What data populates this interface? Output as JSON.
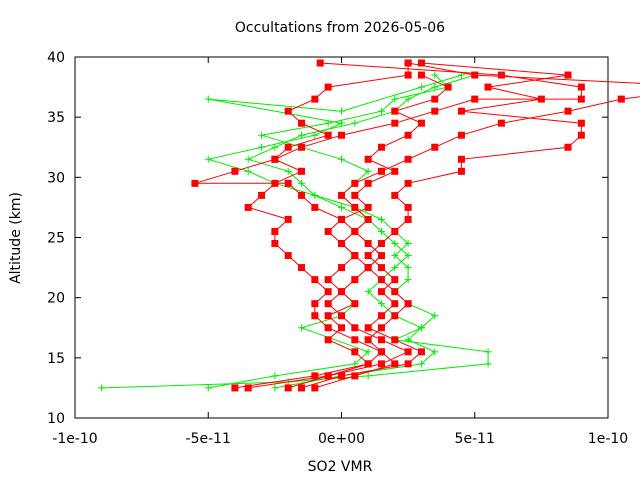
{
  "chart_data": {
    "type": "line",
    "title": "Occultations from 2026-05-06",
    "xlabel": "SO2 VMR",
    "ylabel": "Altitude (km)",
    "xlim": [
      -1e-10,
      1e-10
    ],
    "ylim": [
      10,
      40
    ],
    "x_ticks": [
      {
        "value": -1e-10,
        "label": "-1e-10"
      },
      {
        "value": -5e-11,
        "label": "-5e-11"
      },
      {
        "value": 0,
        "label": "0e+00"
      },
      {
        "value": 5e-11,
        "label": "5e-11"
      },
      {
        "value": 1e-10,
        "label": "1e-10"
      }
    ],
    "y_ticks": [
      {
        "value": 10,
        "label": "10"
      },
      {
        "value": 15,
        "label": "15"
      },
      {
        "value": 20,
        "label": "20"
      },
      {
        "value": 25,
        "label": "25"
      },
      {
        "value": 30,
        "label": "30"
      },
      {
        "value": 35,
        "label": "35"
      },
      {
        "value": 40,
        "label": "40"
      }
    ],
    "grid": false,
    "legend": "none",
    "series": [
      {
        "marker": "square",
        "color": "#ff0000",
        "points": [
          [
            -4e-11,
            12.5
          ],
          [
            -1e-11,
            13.5
          ],
          [
            1e-11,
            14.5
          ],
          [
            5e-12,
            15.5
          ],
          [
            -5e-12,
            16.5
          ],
          [
            0,
            17.5
          ],
          [
            -5e-12,
            18.5
          ],
          [
            5e-12,
            19.5
          ],
          [
            0,
            20.5
          ],
          [
            -5e-12,
            21.5
          ],
          [
            0,
            22.5
          ],
          [
            5e-12,
            23.5
          ],
          [
            0,
            24.5
          ],
          [
            -5e-12,
            25.5
          ],
          [
            0,
            26.5
          ],
          [
            -1e-11,
            27.5
          ],
          [
            -1.5e-11,
            28.5
          ],
          [
            -2e-11,
            29.5
          ],
          [
            -5.5e-11,
            29.5
          ],
          [
            -4e-11,
            30.5
          ],
          [
            -2.5e-11,
            31.5
          ],
          [
            -1.5e-11,
            32.5
          ],
          [
            0,
            33.5
          ],
          [
            2e-11,
            34.5
          ],
          [
            3.5e-11,
            35.5
          ],
          [
            5e-11,
            36.5
          ],
          [
            9e-11,
            36.5
          ],
          [
            9e-11,
            37.5
          ],
          [
            6e-11,
            38.5
          ],
          [
            -8e-12,
            39.5
          ]
        ]
      },
      {
        "marker": "square",
        "color": "#ff0000",
        "points": [
          [
            -3.5e-11,
            12.5
          ],
          [
            -5e-12,
            13.5
          ],
          [
            1.5e-11,
            14.5
          ],
          [
            2.5e-11,
            15.5
          ],
          [
            1.5e-11,
            16.5
          ],
          [
            5e-12,
            17.5
          ],
          [
            0,
            18.5
          ],
          [
            -5e-12,
            19.5
          ],
          [
            0,
            20.5
          ],
          [
            5e-12,
            21.5
          ],
          [
            1e-11,
            22.5
          ],
          [
            5e-12,
            23.5
          ],
          [
            0,
            24.5
          ],
          [
            5e-12,
            25.5
          ],
          [
            1e-11,
            26.5
          ],
          [
            5e-12,
            27.5
          ],
          [
            0,
            28.5
          ],
          [
            5e-12,
            29.5
          ],
          [
            1.5e-11,
            30.5
          ],
          [
            2.5e-11,
            31.5
          ],
          [
            3.5e-11,
            32.5
          ],
          [
            4.5e-11,
            33.5
          ],
          [
            6e-11,
            34.5
          ],
          [
            8.5e-11,
            35.5
          ],
          [
            1.05e-10,
            36.5
          ],
          [
            1.4e-10,
            37.5
          ],
          [
            5e-11,
            38.5
          ],
          [
            2.5e-11,
            39.5
          ]
        ]
      },
      {
        "marker": "square",
        "color": "#ff0000",
        "points": [
          [
            -1e-11,
            12.5
          ],
          [
            5e-12,
            13.5
          ],
          [
            2e-11,
            14.5
          ],
          [
            1.5e-11,
            15.5
          ],
          [
            5e-12,
            16.5
          ],
          [
            -5e-12,
            17.5
          ],
          [
            -1e-11,
            18.5
          ],
          [
            -1e-11,
            19.5
          ],
          [
            -5e-12,
            20.5
          ],
          [
            -1e-11,
            21.5
          ],
          [
            -1.5e-11,
            22.5
          ],
          [
            -2e-11,
            23.5
          ],
          [
            -2.5e-11,
            24.5
          ],
          [
            -2.5e-11,
            25.5
          ],
          [
            -2e-11,
            26.5
          ],
          [
            -3.5e-11,
            27.5
          ],
          [
            -3e-11,
            28.5
          ],
          [
            -2.5e-11,
            29.5
          ],
          [
            -1.5e-11,
            30.5
          ],
          [
            -2.5e-11,
            31.5
          ],
          [
            -2e-11,
            32.5
          ],
          [
            -5e-12,
            33.5
          ],
          [
            -1.5e-11,
            34.5
          ],
          [
            -2e-11,
            35.5
          ],
          [
            -1e-11,
            36.5
          ],
          [
            -5e-12,
            37.5
          ],
          [
            2.5e-11,
            38.5
          ],
          [
            2.5e-11,
            39.5
          ]
        ]
      },
      {
        "marker": "square",
        "color": "#ff0000",
        "points": [
          [
            -1.5e-11,
            12.5
          ],
          [
            0,
            13.5
          ],
          [
            2.5e-11,
            14.5
          ],
          [
            3e-11,
            15.5
          ],
          [
            2e-11,
            16.5
          ],
          [
            1e-11,
            17.5
          ],
          [
            1.5e-11,
            18.5
          ],
          [
            2e-11,
            19.5
          ],
          [
            1.5e-11,
            20.5
          ],
          [
            2e-11,
            21.5
          ],
          [
            1.5e-11,
            22.5
          ],
          [
            1e-11,
            23.5
          ],
          [
            1.5e-11,
            24.5
          ],
          [
            2e-11,
            25.5
          ],
          [
            2.5e-11,
            26.5
          ],
          [
            2.5e-11,
            27.5
          ],
          [
            2e-11,
            28.5
          ],
          [
            2.5e-11,
            29.5
          ],
          [
            4.5e-11,
            30.5
          ],
          [
            4.5e-11,
            31.5
          ],
          [
            8.5e-11,
            32.5
          ],
          [
            9e-11,
            33.5
          ],
          [
            9e-11,
            34.5
          ],
          [
            4.5e-11,
            35.5
          ],
          [
            7.5e-11,
            36.5
          ],
          [
            5.5e-11,
            37.5
          ],
          [
            8.5e-11,
            38.5
          ],
          [
            3e-11,
            39.5
          ]
        ]
      },
      {
        "marker": "square",
        "color": "#ff0000",
        "points": [
          [
            -2e-11,
            12.5
          ],
          [
            -5e-12,
            13.5
          ],
          [
            1e-11,
            14.5
          ],
          [
            1.5e-11,
            15.5
          ],
          [
            1e-11,
            16.5
          ],
          [
            1.5e-11,
            17.5
          ],
          [
            2e-11,
            18.5
          ],
          [
            2.5e-11,
            19.5
          ],
          [
            2e-11,
            20.5
          ],
          [
            1.5e-11,
            21.5
          ],
          [
            1e-11,
            22.5
          ],
          [
            1.5e-11,
            23.5
          ],
          [
            1e-11,
            24.5
          ],
          [
            5e-12,
            25.5
          ],
          [
            0,
            26.5
          ],
          [
            1e-11,
            27.5
          ],
          [
            5e-12,
            28.5
          ],
          [
            1e-11,
            29.5
          ],
          [
            2e-11,
            30.5
          ],
          [
            1e-11,
            31.5
          ],
          [
            1.5e-11,
            32.5
          ],
          [
            2.5e-11,
            33.5
          ],
          [
            3e-11,
            34.5
          ],
          [
            2e-11,
            35.5
          ],
          [
            3.5e-11,
            36.5
          ],
          [
            4e-11,
            37.5
          ],
          [
            3e-11,
            38.5
          ]
        ]
      },
      {
        "marker": "plus",
        "color": "#00ee00",
        "points": [
          [
            -9e-11,
            12.5
          ],
          [
            -2e-11,
            13
          ],
          [
            1e-11,
            13.5
          ],
          [
            5.5e-11,
            14.5
          ],
          [
            5.5e-11,
            15.5
          ],
          [
            2e-11,
            16.5
          ],
          [
            3e-11,
            17.5
          ],
          [
            3.5e-11,
            18.5
          ],
          [
            2.5e-11,
            19.5
          ],
          [
            2e-11,
            20.5
          ],
          [
            2.5e-11,
            21.5
          ],
          [
            2.5e-11,
            22.5
          ],
          [
            2e-11,
            23.5
          ],
          [
            2.5e-11,
            24.5
          ],
          [
            2e-11,
            25.5
          ],
          [
            1.5e-11,
            26.5
          ],
          [
            5e-12,
            27.5
          ],
          [
            -1e-11,
            28.5
          ],
          [
            -2.5e-11,
            29.5
          ],
          [
            -3.5e-11,
            30.5
          ],
          [
            -5e-11,
            31.5
          ],
          [
            -3e-11,
            32.5
          ],
          [
            -1e-11,
            33.5
          ],
          [
            0,
            34.5
          ],
          [
            -5e-11,
            36.5
          ],
          [
            0,
            35.5
          ],
          [
            3e-11,
            37.5
          ],
          [
            4.5e-11,
            38.5
          ]
        ]
      },
      {
        "marker": "plus",
        "color": "#00ee00",
        "points": [
          [
            -5e-11,
            12.5
          ],
          [
            -2.5e-11,
            13.5
          ],
          [
            5e-12,
            14.5
          ],
          [
            1e-11,
            15.5
          ],
          [
            -1.5e-11,
            17.5
          ],
          [
            0,
            18.5
          ],
          [
            5e-12,
            19.5
          ],
          [
            0,
            20.5
          ],
          [
            5e-12,
            21.5
          ],
          [
            1e-11,
            22.5
          ],
          [
            1.5e-11,
            23.5
          ],
          [
            1e-11,
            24.5
          ],
          [
            5e-12,
            25.5
          ],
          [
            1e-11,
            26.5
          ],
          [
            0,
            27.5
          ],
          [
            -1e-11,
            28.5
          ],
          [
            -1.5e-11,
            29.5
          ],
          [
            -2e-11,
            30.5
          ],
          [
            -3.5e-11,
            31.5
          ],
          [
            -2.5e-11,
            32.5
          ],
          [
            -1.5e-11,
            33.5
          ],
          [
            5e-12,
            34.5
          ],
          [
            2e-11,
            35.5
          ],
          [
            2.5e-11,
            36.5
          ],
          [
            3.5e-11,
            37.5
          ],
          [
            5e-11,
            38.5
          ]
        ]
      },
      {
        "marker": "plus",
        "color": "#00ee00",
        "points": [
          [
            -2.5e-11,
            12.5
          ],
          [
            0,
            13.5
          ],
          [
            3e-11,
            14.5
          ],
          [
            3.5e-11,
            15.5
          ],
          [
            2.5e-11,
            16.5
          ],
          [
            3e-11,
            17.5
          ],
          [
            2e-11,
            18.5
          ],
          [
            1.5e-11,
            19.5
          ],
          [
            1e-11,
            20.5
          ],
          [
            1.5e-11,
            21.5
          ],
          [
            2e-11,
            22.5
          ],
          [
            2.5e-11,
            23.5
          ],
          [
            2e-11,
            24.5
          ],
          [
            1.5e-11,
            25.5
          ],
          [
            1e-11,
            26.5
          ],
          [
            5e-12,
            27.5
          ],
          [
            0,
            28.5
          ],
          [
            5e-12,
            29.5
          ],
          [
            1e-11,
            30.5
          ],
          [
            0,
            31.5
          ],
          [
            -1.5e-11,
            32.5
          ],
          [
            -3e-11,
            33.5
          ],
          [
            -5e-12,
            34.5
          ],
          [
            1.5e-11,
            35.5
          ],
          [
            2e-11,
            36.5
          ],
          [
            4e-11,
            37.5
          ],
          [
            3.5e-11,
            38.5
          ]
        ]
      }
    ]
  }
}
